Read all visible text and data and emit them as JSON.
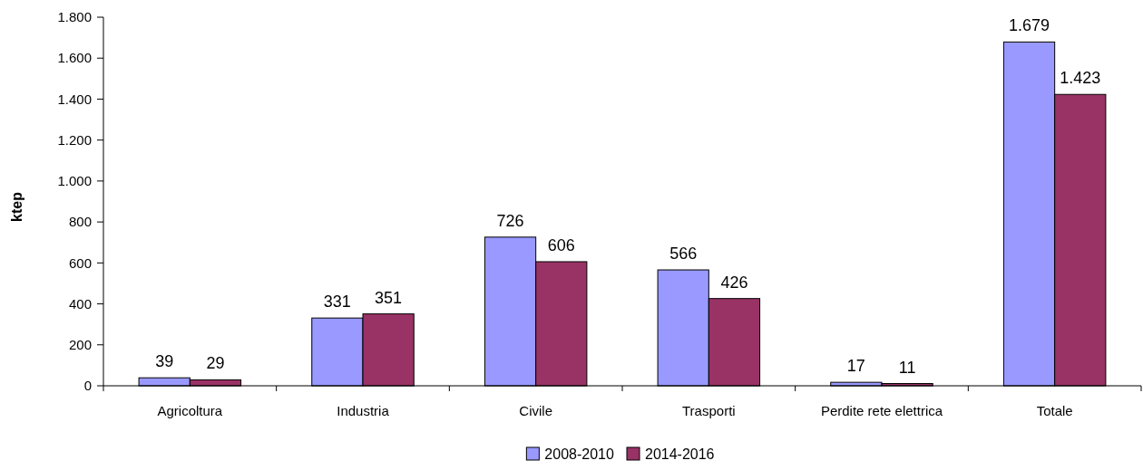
{
  "chart_data": {
    "type": "bar",
    "ylabel": "ktep",
    "categories": [
      "Agricoltura",
      "Industria",
      "Civile",
      "Trasporti",
      "Perdite rete elettrica",
      "Totale"
    ],
    "series": [
      {
        "name": "2008-2010",
        "color": "#9999ff",
        "values": [
          39,
          331,
          726,
          566,
          17,
          1679
        ],
        "value_labels": [
          "39",
          "331",
          "726",
          "566",
          "17",
          "1.679"
        ]
      },
      {
        "name": "2014-2016",
        "color": "#993366",
        "values": [
          29,
          351,
          606,
          426,
          11,
          1423
        ],
        "value_labels": [
          "29",
          "351",
          "606",
          "426",
          "11",
          "1.423"
        ]
      }
    ],
    "ylim": [
      0,
      1800
    ],
    "yticks": [
      0,
      200,
      400,
      600,
      800,
      {
        "value": 1000,
        "label": "1.000"
      },
      {
        "value": 1200,
        "label": "1.200"
      },
      {
        "value": 1400,
        "label": "1.400"
      },
      {
        "value": 1600,
        "label": "1.600"
      },
      {
        "value": 1800,
        "label": "1.800"
      }
    ],
    "grid": false,
    "legend": "bottom"
  }
}
